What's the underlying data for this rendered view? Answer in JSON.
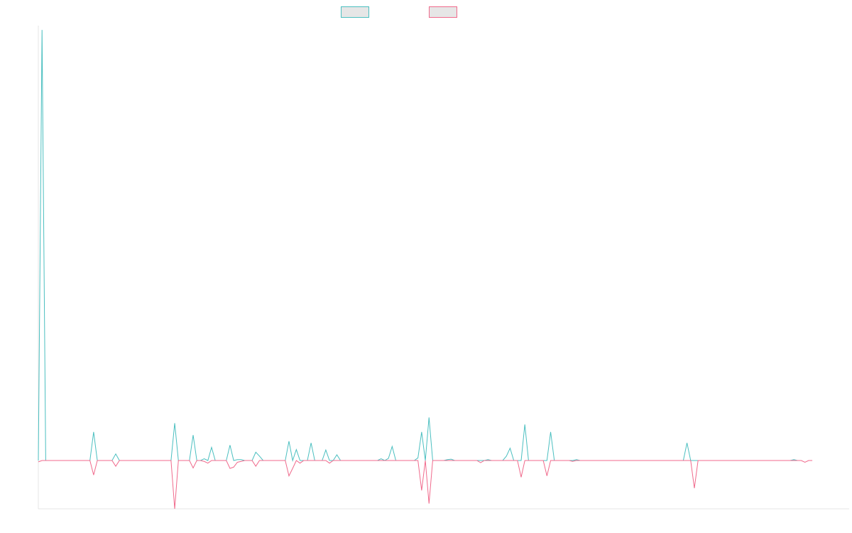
{
  "colors": {
    "series_a": "#4bbfc0",
    "series_b": "#f06a8c",
    "axis": "#e4e4e4",
    "legend_fill": "#e6e6e6"
  },
  "chart_data": {
    "type": "line",
    "title": "",
    "xlabel": "",
    "ylabel": "",
    "legend": {
      "placement": "top-center",
      "entries": [
        "",
        ""
      ]
    },
    "grid": false,
    "x_ticks_shown": false,
    "y_ticks_shown": false,
    "xlim": [
      0,
      176
    ],
    "ylim": [
      -1.1,
      9.9
    ],
    "series": [
      {
        "values": [
          0,
          9.8,
          0,
          0,
          0,
          0,
          0,
          0,
          0,
          0,
          0,
          0,
          0,
          0,
          0,
          0.65,
          0,
          0,
          0,
          0,
          0,
          0.15,
          0,
          0,
          0,
          0,
          0,
          0,
          0,
          0,
          0,
          0,
          0,
          0,
          0,
          0,
          0,
          0.85,
          0,
          0,
          0,
          0,
          0.58,
          0,
          0,
          0.04,
          0,
          0.3,
          0,
          0,
          0,
          0,
          0.35,
          0,
          0.02,
          0.02,
          0,
          0,
          0,
          0.19,
          0.1,
          0,
          0,
          0,
          0,
          0,
          0,
          0,
          0.44,
          0,
          0.25,
          0,
          0,
          0,
          0.4,
          0,
          0,
          0,
          0.24,
          0,
          0,
          0.13,
          0,
          0,
          0,
          0,
          0,
          0,
          0,
          0,
          0,
          0,
          0,
          0.04,
          0,
          0.05,
          0.32,
          0,
          0,
          0,
          0,
          0,
          0,
          0.06,
          0.65,
          0,
          0.98,
          0,
          0,
          0,
          0,
          0.02,
          0.03,
          0,
          0,
          0,
          0,
          0,
          0,
          0,
          0,
          0,
          0.02,
          0,
          0,
          0,
          0,
          0.1,
          0.28,
          0,
          0,
          0,
          0.82,
          0,
          0,
          0,
          0,
          0,
          0,
          0.65,
          0,
          0,
          0,
          0,
          0,
          0,
          0.02,
          0,
          0,
          0,
          0,
          0,
          0,
          0,
          0,
          0,
          0,
          0,
          0,
          0,
          0,
          0,
          0,
          0,
          0,
          0,
          0,
          0,
          0,
          0,
          0,
          0,
          0,
          0,
          0,
          0,
          0.4,
          0,
          0,
          0,
          0,
          0,
          0,
          0,
          0,
          0,
          0,
          0,
          0,
          0,
          0,
          0,
          0,
          0,
          0,
          0,
          0,
          0,
          0,
          0,
          0,
          0,
          0,
          0,
          0,
          0.02,
          0
        ],
        "step_width": 0.8
      },
      {
        "values": [
          -0.03,
          0,
          0,
          0,
          0,
          0,
          0,
          0,
          0,
          0,
          0,
          0,
          0,
          0,
          0,
          -0.33,
          0,
          0,
          0,
          0,
          0,
          -0.13,
          0,
          0,
          0,
          0,
          0,
          0,
          0,
          0,
          0,
          0,
          0,
          0,
          0,
          0,
          0,
          -1.1,
          0,
          0,
          0,
          0,
          -0.17,
          0,
          0,
          -0.02,
          -0.06,
          0,
          0,
          0,
          0,
          0,
          -0.18,
          -0.15,
          -0.04,
          -0.02,
          0,
          0,
          0,
          -0.13,
          0,
          0,
          0,
          0,
          0,
          0,
          0,
          0,
          -0.35,
          -0.18,
          0,
          -0.06,
          0,
          0,
          0,
          0,
          0,
          0,
          0,
          -0.06,
          0,
          0,
          0,
          0,
          0,
          0,
          0,
          0,
          0,
          0,
          0,
          0,
          0,
          0,
          0,
          0,
          0,
          0,
          0,
          0,
          0,
          0,
          0,
          0,
          -0.68,
          0,
          -0.98,
          0,
          0,
          0,
          0,
          0,
          0,
          0,
          0,
          0,
          0,
          0,
          0,
          0,
          -0.05,
          0,
          0,
          0,
          0,
          0,
          0,
          0,
          0,
          0,
          0,
          -0.38,
          0,
          0,
          0,
          0,
          0,
          0,
          -0.35,
          0,
          0,
          0,
          0,
          0,
          0,
          -0.02,
          0,
          0,
          0,
          0,
          0,
          0,
          0,
          0,
          0,
          0,
          0,
          0,
          0,
          0,
          0,
          0,
          0,
          0,
          0,
          0,
          0,
          0,
          0,
          0,
          0,
          0,
          0,
          0,
          0,
          0,
          0,
          0,
          -0.63,
          0,
          0,
          0,
          0,
          0,
          0,
          0,
          0,
          0,
          0,
          0,
          0,
          0,
          0,
          0,
          0,
          0,
          0,
          0,
          0,
          0,
          0,
          0,
          0,
          0,
          0,
          0,
          0,
          0,
          -0.04,
          0,
          0
        ],
        "step_width": 0.8
      }
    ]
  }
}
